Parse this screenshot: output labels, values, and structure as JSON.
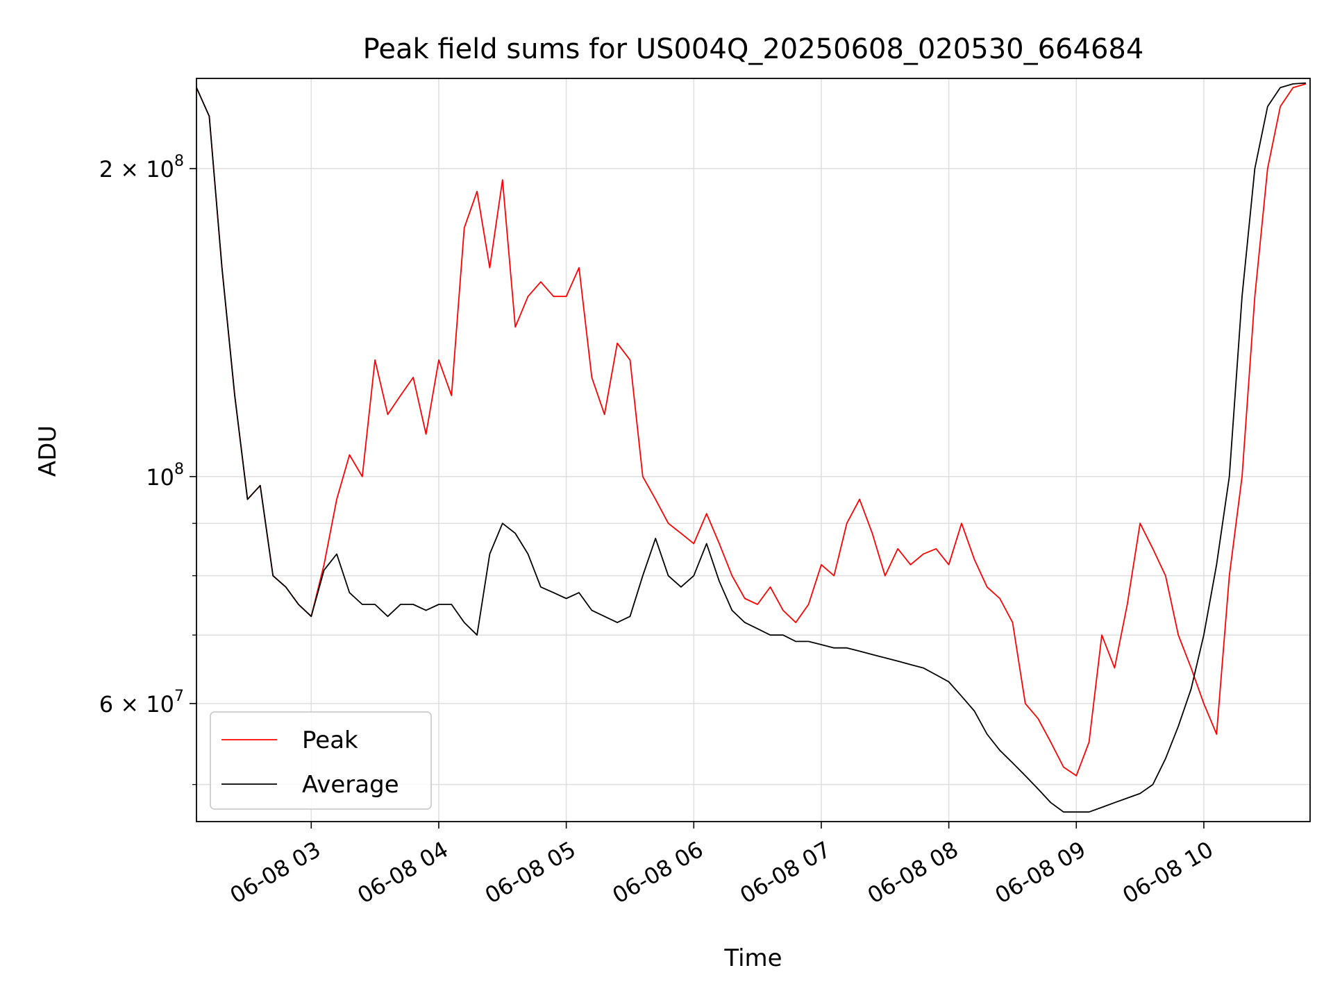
{
  "chart_data": {
    "type": "line",
    "title": "Peak field sums for US004Q_20250608_020530_664684",
    "xlabel": "Time",
    "ylabel": "ADU",
    "y_scale": "log",
    "ylim": [
      46000000,
      245000000
    ],
    "xlim": [
      "2025-06-08 02:06",
      "2025-06-08 10:50"
    ],
    "grid": true,
    "legend_position": "lower-left",
    "x_ticks": [
      {
        "t": "2025-06-08 03:00",
        "label": "06-08 03"
      },
      {
        "t": "2025-06-08 04:00",
        "label": "06-08 04"
      },
      {
        "t": "2025-06-08 05:00",
        "label": "06-08 05"
      },
      {
        "t": "2025-06-08 06:00",
        "label": "06-08 06"
      },
      {
        "t": "2025-06-08 07:00",
        "label": "06-08 07"
      },
      {
        "t": "2025-06-08 08:00",
        "label": "06-08 08"
      },
      {
        "t": "2025-06-08 09:00",
        "label": "06-08 09"
      },
      {
        "t": "2025-06-08 10:00",
        "label": "06-08 10"
      }
    ],
    "y_ticks_major": [
      {
        "value": 60000000,
        "mantissa": "6",
        "exponent": "7"
      },
      {
        "value": 100000000,
        "mantissa": "",
        "exponent": "8"
      },
      {
        "value": 200000000,
        "mantissa": "2",
        "exponent": "8"
      }
    ],
    "y_ticks_minor": [
      50000000,
      70000000,
      80000000,
      90000000
    ],
    "series": [
      {
        "name": "Peak",
        "color": "#ff0000",
        "x": [
          "2025-06-08 02:06",
          "2025-06-08 02:12",
          "2025-06-08 02:18",
          "2025-06-08 02:24",
          "2025-06-08 02:30",
          "2025-06-08 02:36",
          "2025-06-08 02:42",
          "2025-06-08 02:48",
          "2025-06-08 02:54",
          "2025-06-08 03:00",
          "2025-06-08 03:06",
          "2025-06-08 03:12",
          "2025-06-08 03:18",
          "2025-06-08 03:24",
          "2025-06-08 03:30",
          "2025-06-08 03:36",
          "2025-06-08 03:42",
          "2025-06-08 03:48",
          "2025-06-08 03:54",
          "2025-06-08 04:00",
          "2025-06-08 04:06",
          "2025-06-08 04:12",
          "2025-06-08 04:18",
          "2025-06-08 04:24",
          "2025-06-08 04:30",
          "2025-06-08 04:36",
          "2025-06-08 04:42",
          "2025-06-08 04:48",
          "2025-06-08 04:54",
          "2025-06-08 05:00",
          "2025-06-08 05:06",
          "2025-06-08 05:12",
          "2025-06-08 05:18",
          "2025-06-08 05:24",
          "2025-06-08 05:30",
          "2025-06-08 05:36",
          "2025-06-08 05:42",
          "2025-06-08 05:48",
          "2025-06-08 05:54",
          "2025-06-08 06:00",
          "2025-06-08 06:06",
          "2025-06-08 06:12",
          "2025-06-08 06:18",
          "2025-06-08 06:24",
          "2025-06-08 06:30",
          "2025-06-08 06:36",
          "2025-06-08 06:42",
          "2025-06-08 06:48",
          "2025-06-08 06:54",
          "2025-06-08 07:00",
          "2025-06-08 07:06",
          "2025-06-08 07:12",
          "2025-06-08 07:18",
          "2025-06-08 07:24",
          "2025-06-08 07:30",
          "2025-06-08 07:36",
          "2025-06-08 07:42",
          "2025-06-08 07:48",
          "2025-06-08 07:54",
          "2025-06-08 08:00",
          "2025-06-08 08:06",
          "2025-06-08 08:12",
          "2025-06-08 08:18",
          "2025-06-08 08:24",
          "2025-06-08 08:30",
          "2025-06-08 08:36",
          "2025-06-08 08:42",
          "2025-06-08 08:48",
          "2025-06-08 08:54",
          "2025-06-08 09:00",
          "2025-06-08 09:06",
          "2025-06-08 09:12",
          "2025-06-08 09:18",
          "2025-06-08 09:24",
          "2025-06-08 09:30",
          "2025-06-08 09:36",
          "2025-06-08 09:42",
          "2025-06-08 09:48",
          "2025-06-08 09:54",
          "2025-06-08 10:00",
          "2025-06-08 10:06",
          "2025-06-08 10:12",
          "2025-06-08 10:18",
          "2025-06-08 10:24",
          "2025-06-08 10:30",
          "2025-06-08 10:36",
          "2025-06-08 10:42",
          "2025-06-08 10:48"
        ],
        "y": [
          240000000,
          225000000,
          160000000,
          120000000,
          95000000,
          98000000,
          80000000,
          78000000,
          75000000,
          73000000,
          82000000,
          95000000,
          105000000,
          100000000,
          130000000,
          115000000,
          120000000,
          125000000,
          110000000,
          130000000,
          120000000,
          175000000,
          190000000,
          160000000,
          195000000,
          140000000,
          150000000,
          155000000,
          150000000,
          150000000,
          160000000,
          125000000,
          115000000,
          135000000,
          130000000,
          100000000,
          95000000,
          90000000,
          88000000,
          86000000,
          92000000,
          86000000,
          80000000,
          76000000,
          75000000,
          78000000,
          74000000,
          72000000,
          75000000,
          82000000,
          80000000,
          90000000,
          95000000,
          88000000,
          80000000,
          85000000,
          82000000,
          84000000,
          85000000,
          82000000,
          90000000,
          83000000,
          78000000,
          76000000,
          72000000,
          60000000,
          58000000,
          55000000,
          52000000,
          51000000,
          55000000,
          70000000,
          65000000,
          75000000,
          90000000,
          85000000,
          80000000,
          70000000,
          65000000,
          60000000,
          56000000,
          80000000,
          100000000,
          150000000,
          200000000,
          230000000,
          240000000,
          242000000
        ]
      },
      {
        "name": "Average",
        "color": "#000000",
        "x": [
          "2025-06-08 02:06",
          "2025-06-08 02:12",
          "2025-06-08 02:18",
          "2025-06-08 02:24",
          "2025-06-08 02:30",
          "2025-06-08 02:36",
          "2025-06-08 02:42",
          "2025-06-08 02:48",
          "2025-06-08 02:54",
          "2025-06-08 03:00",
          "2025-06-08 03:06",
          "2025-06-08 03:12",
          "2025-06-08 03:18",
          "2025-06-08 03:24",
          "2025-06-08 03:30",
          "2025-06-08 03:36",
          "2025-06-08 03:42",
          "2025-06-08 03:48",
          "2025-06-08 03:54",
          "2025-06-08 04:00",
          "2025-06-08 04:06",
          "2025-06-08 04:12",
          "2025-06-08 04:18",
          "2025-06-08 04:24",
          "2025-06-08 04:30",
          "2025-06-08 04:36",
          "2025-06-08 04:42",
          "2025-06-08 04:48",
          "2025-06-08 04:54",
          "2025-06-08 05:00",
          "2025-06-08 05:06",
          "2025-06-08 05:12",
          "2025-06-08 05:18",
          "2025-06-08 05:24",
          "2025-06-08 05:30",
          "2025-06-08 05:36",
          "2025-06-08 05:42",
          "2025-06-08 05:48",
          "2025-06-08 05:54",
          "2025-06-08 06:00",
          "2025-06-08 06:06",
          "2025-06-08 06:12",
          "2025-06-08 06:18",
          "2025-06-08 06:24",
          "2025-06-08 06:30",
          "2025-06-08 06:36",
          "2025-06-08 06:42",
          "2025-06-08 06:48",
          "2025-06-08 06:54",
          "2025-06-08 07:00",
          "2025-06-08 07:06",
          "2025-06-08 07:12",
          "2025-06-08 07:18",
          "2025-06-08 07:24",
          "2025-06-08 07:30",
          "2025-06-08 07:36",
          "2025-06-08 07:42",
          "2025-06-08 07:48",
          "2025-06-08 07:54",
          "2025-06-08 08:00",
          "2025-06-08 08:06",
          "2025-06-08 08:12",
          "2025-06-08 08:18",
          "2025-06-08 08:24",
          "2025-06-08 08:30",
          "2025-06-08 08:36",
          "2025-06-08 08:42",
          "2025-06-08 08:48",
          "2025-06-08 08:54",
          "2025-06-08 09:00",
          "2025-06-08 09:06",
          "2025-06-08 09:12",
          "2025-06-08 09:18",
          "2025-06-08 09:24",
          "2025-06-08 09:30",
          "2025-06-08 09:36",
          "2025-06-08 09:42",
          "2025-06-08 09:48",
          "2025-06-08 09:54",
          "2025-06-08 10:00",
          "2025-06-08 10:06",
          "2025-06-08 10:12",
          "2025-06-08 10:18",
          "2025-06-08 10:24",
          "2025-06-08 10:30",
          "2025-06-08 10:36",
          "2025-06-08 10:42",
          "2025-06-08 10:48"
        ],
        "y": [
          240000000,
          225000000,
          160000000,
          120000000,
          95000000,
          98000000,
          80000000,
          78000000,
          75000000,
          73000000,
          81000000,
          84000000,
          77000000,
          75000000,
          75000000,
          73000000,
          75000000,
          75000000,
          74000000,
          75000000,
          75000000,
          72000000,
          70000000,
          84000000,
          90000000,
          88000000,
          84000000,
          78000000,
          77000000,
          76000000,
          77000000,
          74000000,
          73000000,
          72000000,
          73000000,
          80000000,
          87000000,
          80000000,
          78000000,
          80000000,
          86000000,
          79000000,
          74000000,
          72000000,
          71000000,
          70000000,
          70000000,
          69000000,
          69000000,
          68500000,
          68000000,
          68000000,
          67500000,
          67000000,
          66500000,
          66000000,
          65500000,
          65000000,
          64000000,
          63000000,
          61000000,
          59000000,
          56000000,
          54000000,
          52500000,
          51000000,
          49500000,
          48000000,
          47000000,
          47000000,
          47000000,
          47500000,
          48000000,
          48500000,
          49000000,
          50000000,
          53000000,
          57000000,
          62000000,
          70000000,
          82000000,
          100000000,
          150000000,
          200000000,
          230000000,
          240000000,
          242000000,
          242500000
        ]
      }
    ]
  }
}
